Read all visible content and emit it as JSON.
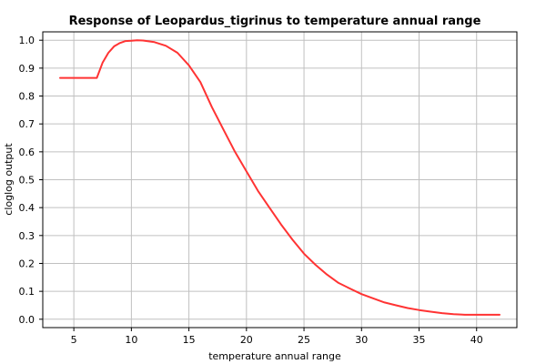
{
  "chart_data": {
    "type": "line",
    "title": "Response of Leopardus_tigrinus to temperature annual range",
    "xlabel": "temperature annual range",
    "ylabel": "cloglog output",
    "xlim": [
      2.3,
      43.5
    ],
    "ylim": [
      -0.03,
      1.03
    ],
    "xticks": [
      5,
      10,
      15,
      20,
      25,
      30,
      35,
      40
    ],
    "yticks": [
      0.0,
      0.1,
      0.2,
      0.3,
      0.4,
      0.5,
      0.6,
      0.7,
      0.8,
      0.9,
      1.0
    ],
    "grid": true,
    "series_color": "#ff3333",
    "series": [
      {
        "x": [
          3.8,
          5,
          6,
          7,
          7.5,
          8,
          8.5,
          9,
          9.5,
          10,
          10.5,
          11,
          12,
          13,
          14,
          15,
          16,
          17,
          18,
          19,
          20,
          21,
          22,
          23,
          24,
          25,
          26,
          27,
          28,
          29,
          30,
          31,
          32,
          33,
          34,
          35,
          36,
          37,
          38,
          39,
          40,
          41,
          42
        ],
        "y": [
          0.865,
          0.865,
          0.865,
          0.865,
          0.92,
          0.955,
          0.978,
          0.99,
          0.997,
          0.998,
          1.0,
          0.999,
          0.993,
          0.98,
          0.955,
          0.91,
          0.85,
          0.76,
          0.68,
          0.6,
          0.53,
          0.46,
          0.4,
          0.34,
          0.285,
          0.235,
          0.195,
          0.16,
          0.13,
          0.11,
          0.09,
          0.075,
          0.06,
          0.05,
          0.04,
          0.033,
          0.027,
          0.022,
          0.018,
          0.016,
          0.016,
          0.016,
          0.016
        ]
      }
    ]
  }
}
